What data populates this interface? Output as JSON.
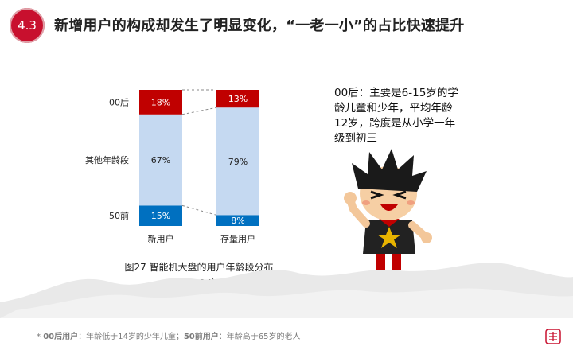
{
  "section_number": "4.3",
  "title": "新增用户的构成却发生了明显变化，“一老一小”的占比快速提升",
  "caption_line1": "图27 智能机大盘的用户年龄段分布",
  "caption_line2": "（14Q4）",
  "note": "00后：主要是6-15岁的学龄儿童和少年，平均年龄12岁，跨度是从小学一年级到初三",
  "footnote": {
    "prefix": "* ",
    "term1": "00后用户",
    "def1": "：年龄低于14岁的少年儿童；",
    "term2": "50前用户",
    "def2": "：年龄高于65岁的老人"
  },
  "colors": {
    "accent_red": "#c8102e",
    "bar_red": "#c00000",
    "bar_light": "#c5d9f1",
    "bar_blue": "#0070c0"
  },
  "chart_data": {
    "type": "bar",
    "stacked": true,
    "categories": [
      "新用户",
      "存量用户"
    ],
    "segments": [
      "50前",
      "其他年龄段",
      "00后"
    ],
    "series": [
      {
        "name": "50前",
        "values": [
          15,
          8
        ],
        "labels": [
          "15%",
          "8%"
        ],
        "color": "#0070c0"
      },
      {
        "name": "其他年龄段",
        "values": [
          67,
          79
        ],
        "labels": [
          "67%",
          "79%"
        ],
        "color": "#c5d9f1"
      },
      {
        "name": "00后",
        "values": [
          18,
          13
        ],
        "labels": [
          "18%",
          "13%"
        ],
        "color": "#c00000"
      }
    ],
    "ylim": [
      0,
      100
    ]
  }
}
